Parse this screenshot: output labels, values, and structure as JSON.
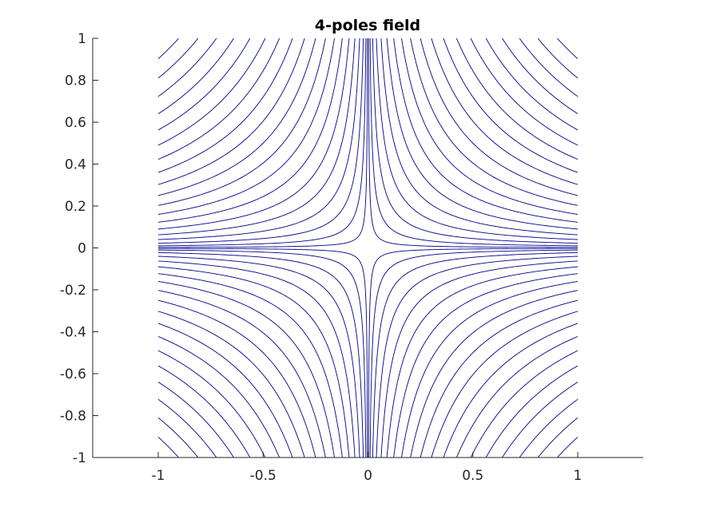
{
  "chart_data": {
    "type": "line",
    "title": "4-poles field",
    "xlabel": "",
    "ylabel": "",
    "xlim": [
      -1.3125,
      1.3125
    ],
    "ylim": [
      -1,
      1
    ],
    "data_extent": {
      "x": [
        -1,
        1
      ],
      "y": [
        -1,
        1
      ]
    },
    "xticks": [
      -1,
      -0.5,
      0,
      0.5,
      1
    ],
    "xtick_labels": [
      "-1",
      "-0.5",
      "0",
      "0.5",
      "1"
    ],
    "yticks": [
      -1,
      -0.8,
      -0.6,
      -0.4,
      -0.2,
      0,
      0.2,
      0.4,
      0.6,
      0.8,
      1
    ],
    "ytick_labels": [
      "-1",
      "-0.8",
      "-0.6",
      "-0.4",
      "-0.2",
      "0",
      "0.2",
      "0.4",
      "0.6",
      "0.8",
      "1"
    ],
    "grid": false,
    "legend": "none",
    "line_color": "#00008B",
    "field_function": "x*y",
    "contour_levels": {
      "positive": [
        0.0025,
        0.01,
        0.0225,
        0.04,
        0.0625,
        0.09,
        0.1225,
        0.16,
        0.2025,
        0.25,
        0.3025,
        0.36,
        0.4225,
        0.49,
        0.5625,
        0.64,
        0.7225,
        0.81,
        0.9025
      ],
      "negative": [
        -0.0025,
        -0.01,
        -0.0225,
        -0.04,
        -0.0625,
        -0.09,
        -0.1225,
        -0.16,
        -0.2025,
        -0.25,
        -0.3025,
        -0.36,
        -0.4225,
        -0.49,
        -0.5625,
        -0.64,
        -0.7225,
        -0.81,
        -0.9025
      ]
    }
  }
}
